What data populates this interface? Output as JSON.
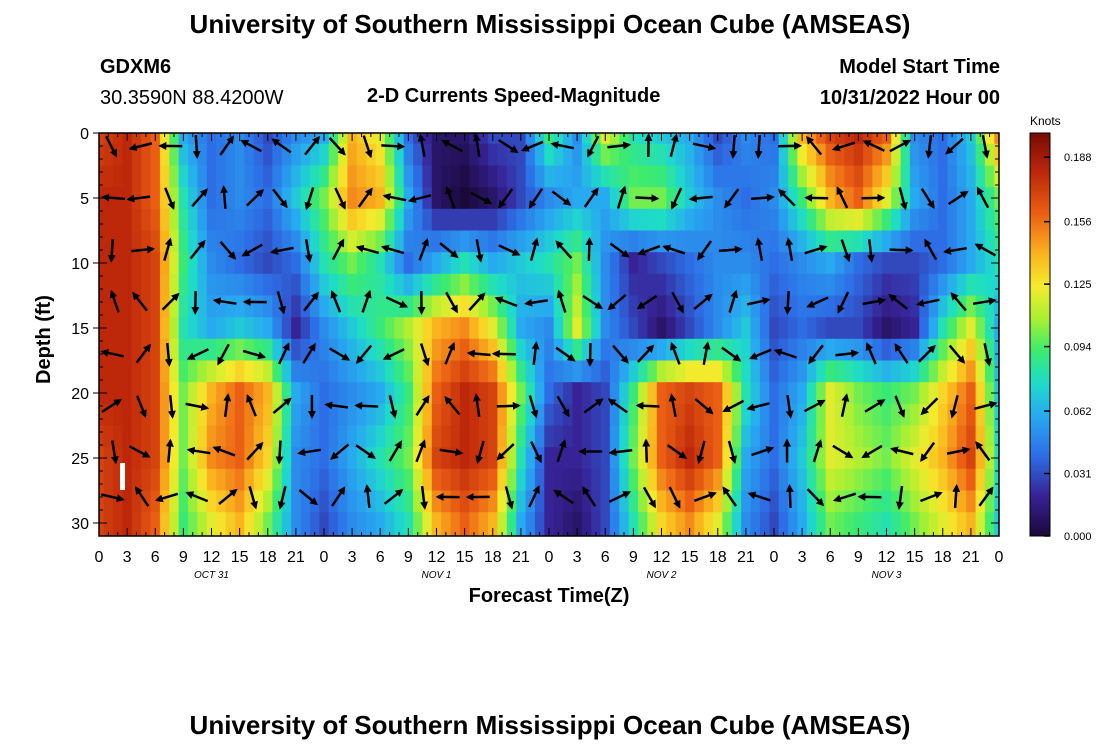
{
  "header": {
    "title": "University of Southern Mississippi Ocean Cube (AMSEAS)",
    "station": "GDXM6",
    "coords": "30.3590N  88.4200W",
    "product": "2-D Currents Speed-Magnitude",
    "start_label": "Model Start Time",
    "start_value": "10/31/2022 Hour 00"
  },
  "footer": {
    "title": "University of Southern Mississippi Ocean Cube (AMSEAS)"
  },
  "chart_data": {
    "type": "heatmap",
    "title": "2-D Currents Speed-Magnitude",
    "xlabel": "Forecast Time(Z)",
    "ylabel": "Depth (ft)",
    "x_tick_labels": [
      "0",
      "3",
      "6",
      "9",
      "12",
      "15",
      "18",
      "21",
      "0",
      "3",
      "6",
      "9",
      "12",
      "15",
      "18",
      "21",
      "0",
      "3",
      "6",
      "9",
      "12",
      "15",
      "18",
      "21",
      "0",
      "3",
      "6",
      "9",
      "12",
      "15",
      "18",
      "21",
      "0"
    ],
    "date_labels": [
      "OCT 31",
      "NOV 1",
      "NOV 2",
      "NOV 3"
    ],
    "y_ticks": [
      0,
      5,
      10,
      15,
      20,
      25,
      30
    ],
    "ylim": [
      0,
      31
    ],
    "xlim_hours": [
      0,
      96
    ],
    "colorbar": {
      "unit": "Knots",
      "ticks": [
        "0.188",
        "0.156",
        "0.125",
        "0.094",
        "0.062",
        "0.031",
        "0.000"
      ],
      "range": [
        0,
        0.2
      ]
    },
    "speed_time_hours": [
      0,
      3,
      6,
      9,
      12,
      15,
      18,
      21,
      24,
      27,
      30,
      33,
      36,
      39,
      42,
      45,
      48,
      51,
      54,
      57,
      60,
      63,
      66,
      69,
      72,
      75,
      78,
      81,
      84,
      87,
      90,
      93,
      96
    ],
    "speed_depth_ft": [
      0,
      5,
      10,
      15,
      20,
      25,
      30
    ],
    "speed_knots": [
      [
        0.17,
        0.18,
        0.16,
        0.06,
        0.04,
        0.05,
        0.03,
        0.05,
        0.06,
        0.14,
        0.12,
        0.04,
        0.01,
        0.01,
        0.03,
        0.03,
        0.09,
        0.05,
        0.12,
        0.08,
        0.07,
        0.06,
        0.03,
        0.05,
        0.04,
        0.14,
        0.17,
        0.18,
        0.16,
        0.05,
        0.04,
        0.07,
        0.15
      ],
      [
        0.18,
        0.18,
        0.16,
        0.08,
        0.04,
        0.05,
        0.04,
        0.07,
        0.1,
        0.15,
        0.14,
        0.06,
        0.01,
        0.0,
        0.01,
        0.03,
        0.05,
        0.06,
        0.06,
        0.1,
        0.1,
        0.07,
        0.05,
        0.04,
        0.05,
        0.09,
        0.14,
        0.16,
        0.12,
        0.06,
        0.04,
        0.06,
        0.1
      ],
      [
        0.18,
        0.18,
        0.17,
        0.09,
        0.05,
        0.04,
        0.03,
        0.04,
        0.08,
        0.1,
        0.08,
        0.04,
        0.06,
        0.08,
        0.06,
        0.07,
        0.08,
        0.1,
        0.05,
        0.02,
        0.03,
        0.04,
        0.05,
        0.05,
        0.04,
        0.05,
        0.06,
        0.04,
        0.03,
        0.03,
        0.04,
        0.06,
        0.08
      ],
      [
        0.18,
        0.18,
        0.17,
        0.08,
        0.06,
        0.07,
        0.06,
        0.02,
        0.05,
        0.07,
        0.09,
        0.11,
        0.14,
        0.15,
        0.12,
        0.06,
        0.05,
        0.12,
        0.05,
        0.03,
        0.01,
        0.03,
        0.05,
        0.07,
        0.03,
        0.04,
        0.03,
        0.03,
        0.01,
        0.02,
        0.08,
        0.12,
        0.06
      ],
      [
        0.18,
        0.18,
        0.17,
        0.1,
        0.14,
        0.16,
        0.14,
        0.06,
        0.04,
        0.05,
        0.06,
        0.09,
        0.16,
        0.18,
        0.17,
        0.1,
        0.04,
        0.02,
        0.03,
        0.09,
        0.16,
        0.17,
        0.16,
        0.08,
        0.04,
        0.06,
        0.12,
        0.1,
        0.09,
        0.1,
        0.13,
        0.16,
        0.07
      ],
      [
        0.17,
        0.18,
        0.17,
        0.1,
        0.15,
        0.16,
        0.13,
        0.05,
        0.04,
        0.06,
        0.08,
        0.1,
        0.17,
        0.18,
        0.17,
        0.08,
        0.02,
        0.02,
        0.03,
        0.1,
        0.16,
        0.18,
        0.16,
        0.06,
        0.04,
        0.07,
        0.12,
        0.11,
        0.1,
        0.12,
        0.14,
        0.17,
        0.08
      ],
      [
        0.17,
        0.18,
        0.16,
        0.09,
        0.12,
        0.14,
        0.1,
        0.05,
        0.03,
        0.05,
        0.06,
        0.08,
        0.14,
        0.16,
        0.14,
        0.06,
        0.02,
        0.01,
        0.03,
        0.08,
        0.13,
        0.15,
        0.12,
        0.05,
        0.03,
        0.06,
        0.1,
        0.09,
        0.08,
        0.1,
        0.12,
        0.14,
        0.07
      ]
    ]
  }
}
